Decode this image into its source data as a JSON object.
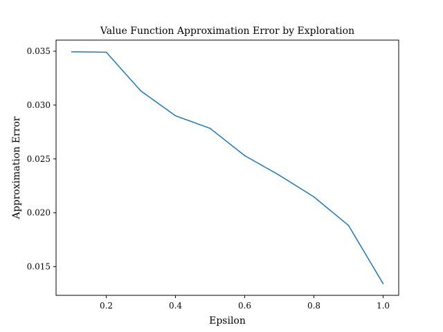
{
  "chart_data": {
    "type": "line",
    "title": "Value Function Approximation Error by Exploration",
    "xlabel": "Epsilon",
    "ylabel": "Approximation Error",
    "x": [
      0.1,
      0.2,
      0.3,
      0.4,
      0.5,
      0.6,
      0.7,
      0.8,
      0.9,
      1.0
    ],
    "series": [
      {
        "values": [
          0.03495,
          0.03491,
          0.03131,
          0.02901,
          0.02784,
          0.02531,
          0.02349,
          0.02148,
          0.01883,
          0.01342
        ],
        "color": "#1f77b4"
      }
    ],
    "xlim": [
      0.055,
      1.045
    ],
    "ylim": [
      0.01234,
      0.03603
    ],
    "xticks": [
      0.2,
      0.4,
      0.6,
      0.8,
      1.0
    ],
    "xtick_labels": [
      "0.2",
      "0.4",
      "0.6",
      "0.8",
      "1.0"
    ],
    "yticks": [
      0.015,
      0.02,
      0.025,
      0.03,
      0.035
    ],
    "ytick_labels": [
      "0.015",
      "0.020",
      "0.025",
      "0.030",
      "0.035"
    ],
    "grid": false,
    "legend": "none"
  }
}
